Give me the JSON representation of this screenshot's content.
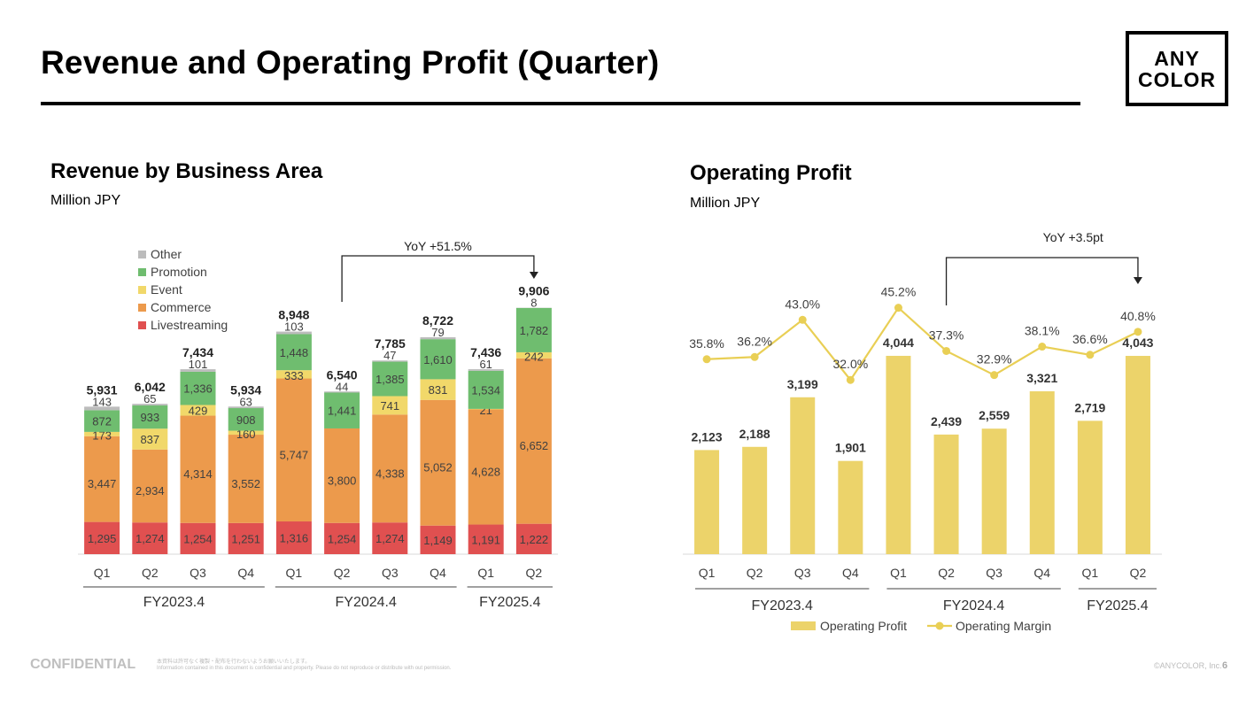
{
  "page": {
    "title": "Revenue and Operating Profit (Quarter)",
    "logo_line1": "ANY",
    "logo_line2": "COLOR",
    "footer_confidential": "CONFIDENTIAL",
    "footer_note_jp": "本資料は許可なく複製・配布を行わないようお願いいたします。",
    "footer_note_en": "Information contained in this document is confidential and property. Please do not reproduce or distribute with out permission.",
    "copyright": "©ANYCOLOR, Inc.",
    "page_number": "6"
  },
  "colors": {
    "livestreaming": "#e05050",
    "commerce": "#ec9a4c",
    "event": "#f1d86a",
    "promotion": "#6fbd6f",
    "other": "#bcbcbc",
    "op_bar": "#ecd36a",
    "op_line": "#e9cf55"
  },
  "chart_data": [
    {
      "type": "bar",
      "stacked": true,
      "title": "Revenue by Business Area",
      "unit": "Million JPY",
      "categories": [
        "Q1",
        "Q2",
        "Q3",
        "Q4",
        "Q1",
        "Q2",
        "Q3",
        "Q4",
        "Q1",
        "Q2"
      ],
      "groups": [
        {
          "label": "FY2023.4",
          "start": 0,
          "end": 3
        },
        {
          "label": "FY2024.4",
          "start": 4,
          "end": 7
        },
        {
          "label": "FY2025.4",
          "start": 8,
          "end": 9
        }
      ],
      "series": [
        {
          "name": "Livestreaming",
          "key": "livestreaming",
          "values": [
            1295,
            1274,
            1254,
            1251,
            1316,
            1254,
            1274,
            1149,
            1191,
            1222
          ]
        },
        {
          "name": "Commerce",
          "key": "commerce",
          "values": [
            3447,
            2934,
            4314,
            3552,
            5747,
            3800,
            4338,
            5052,
            4628,
            6652
          ]
        },
        {
          "name": "Event",
          "key": "event",
          "values": [
            173,
            837,
            429,
            160,
            333,
            0,
            741,
            831,
            21,
            242
          ]
        },
        {
          "name": "Promotion",
          "key": "promotion",
          "values": [
            872,
            933,
            1336,
            908,
            1448,
            1441,
            1385,
            1610,
            1534,
            1782
          ]
        },
        {
          "name": "Other",
          "key": "other",
          "values": [
            143,
            65,
            101,
            63,
            103,
            44,
            47,
            79,
            61,
            8
          ]
        }
      ],
      "totals": [
        5931,
        6042,
        7434,
        5934,
        8948,
        6540,
        7785,
        8722,
        7436,
        9906
      ],
      "legend_order": [
        "Other",
        "Promotion",
        "Event",
        "Commerce",
        "Livestreaming"
      ],
      "legend_position": "top-left",
      "ylim": [
        0,
        10000
      ],
      "annotation": {
        "text": "YoY +51.5%",
        "from_index": 5,
        "to_index": 9
      }
    },
    {
      "type": "bar+line",
      "title": "Operating Profit",
      "unit": "Million JPY",
      "categories": [
        "Q1",
        "Q2",
        "Q3",
        "Q4",
        "Q1",
        "Q2",
        "Q3",
        "Q4",
        "Q1",
        "Q2"
      ],
      "groups": [
        {
          "label": "FY2023.4",
          "start": 0,
          "end": 3
        },
        {
          "label": "FY2024.4",
          "start": 4,
          "end": 7
        },
        {
          "label": "FY2025.4",
          "start": 8,
          "end": 9
        }
      ],
      "bars": {
        "name": "Operating Profit",
        "values": [
          2123,
          2188,
          3199,
          1901,
          4044,
          2439,
          2559,
          3321,
          2719,
          4043
        ]
      },
      "line": {
        "name": "Operating Margin",
        "values": [
          35.8,
          36.2,
          43.0,
          32.0,
          45.2,
          37.3,
          32.9,
          38.1,
          36.6,
          40.8
        ]
      },
      "bar_labels": [
        "2,123",
        "2,188",
        "3,199",
        "1,901",
        "4,044",
        "2,439",
        "2,559",
        "3,321",
        "2,719",
        "4,043"
      ],
      "line_labels": [
        "35.8%",
        "36.2%",
        "43.0%",
        "32.0%",
        "45.2%",
        "37.3%",
        "32.9%",
        "38.1%",
        "36.6%",
        "40.8%"
      ],
      "legend_position": "bottom",
      "ylim": [
        0,
        5000
      ],
      "margin_lim": [
        0,
        50
      ],
      "annotation": {
        "text": "YoY +3.5pt",
        "from_index": 5,
        "to_index": 9
      }
    }
  ]
}
